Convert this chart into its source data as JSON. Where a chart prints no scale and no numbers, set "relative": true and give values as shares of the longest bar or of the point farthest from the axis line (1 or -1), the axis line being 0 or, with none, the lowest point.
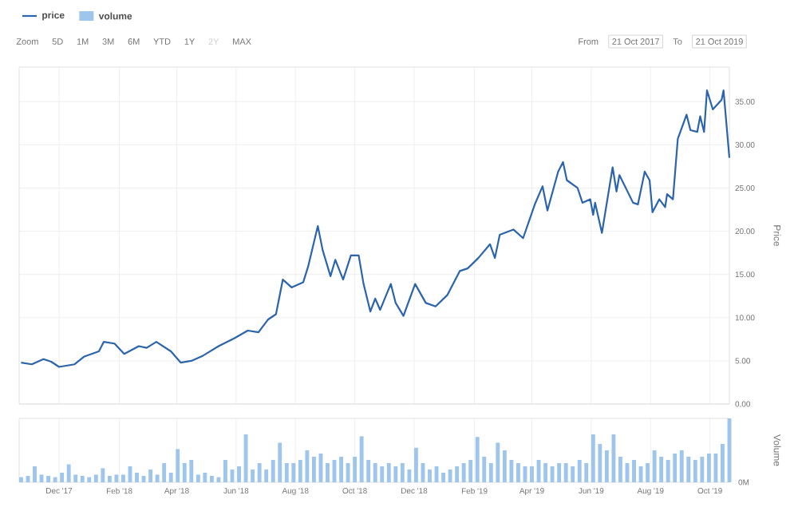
{
  "chart_data": [
    {
      "type": "line",
      "ylabel": "Price",
      "legend": "top left",
      "grid": true,
      "tick_labels": "y",
      "annotations": [
        "Zoom",
        "5D",
        "1M",
        "3M",
        "6M",
        "YTD",
        "1Y",
        "2Y",
        "MAX",
        "From",
        "21 Oct 2017",
        "To",
        "21 Oct 2019"
      ],
      "xlim": [
        "2017-10-21",
        "2019-10-21"
      ],
      "xticks": [
        {
          "value": "2017-12-01",
          "label": null
        },
        {
          "value": "2018-02-01",
          "label": null
        },
        {
          "value": "2018-04-01",
          "label": null
        },
        {
          "value": "2018-06-01",
          "label": null
        },
        {
          "value": "2018-08-01",
          "label": null
        },
        {
          "value": "2018-10-01",
          "label": null
        },
        {
          "value": "2018-12-01",
          "label": null
        },
        {
          "value": "2019-02-01",
          "label": null
        },
        {
          "value": "2019-04-01",
          "label": null
        },
        {
          "value": "2019-06-01",
          "label": null
        },
        {
          "value": "2019-08-01",
          "label": null
        },
        {
          "value": "2019-10-01",
          "label": null
        }
      ],
      "ylim": [
        0,
        39
      ],
      "yticks": [
        {
          "value": 0,
          "label": "0.00"
        },
        {
          "value": 5,
          "label": "5.00"
        },
        {
          "value": 10,
          "label": "10.00"
        },
        {
          "value": 15,
          "label": "15.00"
        },
        {
          "value": 20,
          "label": "20.00"
        },
        {
          "value": 25,
          "label": "25.00"
        },
        {
          "value": 30,
          "label": "30.00"
        },
        {
          "value": 35,
          "label": "35.00"
        }
      ],
      "series": [
        {
          "name": "price",
          "color": "#2b64ad",
          "x": [
            "2017-10-23",
            "2017-11-03",
            "2017-11-15",
            "2017-11-23",
            "2017-12-01",
            "2017-12-17",
            "2017-12-27",
            "2018-01-11",
            "2018-01-16",
            "2018-01-27",
            "2018-02-06",
            "2018-02-21",
            "2018-03-01",
            "2018-03-11",
            "2018-03-26",
            "2018-04-05",
            "2018-04-16",
            "2018-04-28",
            "2018-05-14",
            "2018-05-30",
            "2018-06-13",
            "2018-06-24",
            "2018-07-04",
            "2018-07-12",
            "2018-07-19",
            "2018-07-28",
            "2018-08-09",
            "2018-08-14",
            "2018-08-24",
            "2018-08-29",
            "2018-09-06",
            "2018-09-11",
            "2018-09-19",
            "2018-09-27",
            "2018-10-05",
            "2018-10-10",
            "2018-10-17",
            "2018-10-22",
            "2018-10-27",
            "2018-11-07",
            "2018-11-12",
            "2018-11-20",
            "2018-12-02",
            "2018-12-13",
            "2018-12-23",
            "2019-01-04",
            "2019-01-17",
            "2019-01-25",
            "2019-02-05",
            "2019-02-17",
            "2019-02-22",
            "2019-02-27",
            "2019-03-13",
            "2019-03-23",
            "2019-04-04",
            "2019-04-12",
            "2019-04-17",
            "2019-04-28",
            "2019-05-03",
            "2019-05-07",
            "2019-05-18",
            "2019-05-23",
            "2019-05-31",
            "2019-06-03",
            "2019-06-05",
            "2019-06-12",
            "2019-06-23",
            "2019-06-27",
            "2019-06-30",
            "2019-07-14",
            "2019-07-19",
            "2019-07-26",
            "2019-07-31",
            "2019-08-03",
            "2019-08-10",
            "2019-08-16",
            "2019-08-18",
            "2019-08-24",
            "2019-08-29",
            "2019-09-07",
            "2019-09-11",
            "2019-09-18",
            "2019-09-21",
            "2019-09-25",
            "2019-09-28",
            "2019-10-04",
            "2019-10-13",
            "2019-10-15",
            "2019-10-21"
          ],
          "values": [
            4.8,
            4.6,
            5.2,
            4.9,
            4.3,
            4.6,
            5.5,
            6.1,
            7.2,
            7.0,
            5.8,
            6.7,
            6.5,
            7.2,
            6.1,
            4.8,
            5.0,
            5.6,
            6.7,
            7.6,
            8.5,
            8.3,
            9.8,
            10.4,
            14.4,
            13.5,
            14.1,
            15.9,
            20.6,
            17.8,
            14.8,
            16.7,
            14.4,
            17.2,
            17.2,
            13.9,
            10.7,
            12.2,
            10.9,
            13.9,
            11.7,
            10.2,
            13.9,
            11.7,
            11.3,
            12.6,
            15.4,
            15.7,
            16.9,
            18.5,
            16.9,
            19.6,
            20.2,
            19.2,
            23.1,
            25.2,
            22.4,
            26.9,
            28.0,
            25.9,
            25.0,
            23.3,
            23.7,
            21.9,
            23.3,
            19.8,
            27.4,
            24.6,
            26.5,
            23.3,
            23.1,
            26.9,
            25.9,
            22.2,
            23.7,
            22.8,
            24.3,
            23.7,
            30.7,
            33.5,
            31.7,
            31.5,
            33.3,
            31.5,
            36.3,
            34.1,
            35.2,
            36.3,
            28.5
          ]
        }
      ]
    },
    {
      "type": "bar",
      "relative": true,
      "ylabel": "Volume",
      "legend": "top left",
      "grid": "x",
      "annotations": [
        "0M"
      ],
      "xlim": [
        "2017-10-21",
        "2019-10-21"
      ],
      "xticks": [
        {
          "value": "2017-12-01",
          "label": "Dec '17"
        },
        {
          "value": "2018-02-01",
          "label": "Feb '18"
        },
        {
          "value": "2018-04-01",
          "label": "Apr '18"
        },
        {
          "value": "2018-06-01",
          "label": "Jun '18"
        },
        {
          "value": "2018-08-01",
          "label": "Aug '18"
        },
        {
          "value": "2018-10-01",
          "label": "Oct '18"
        },
        {
          "value": "2018-12-01",
          "label": "Dec '18"
        },
        {
          "value": "2019-02-01",
          "label": "Feb '19"
        },
        {
          "value": "2019-04-01",
          "label": "Apr '19"
        },
        {
          "value": "2019-06-01",
          "label": "Jun '19"
        },
        {
          "value": "2019-08-01",
          "label": "Aug '19"
        },
        {
          "value": "2019-10-01",
          "label": "Oct '19"
        }
      ],
      "series": [
        {
          "name": "volume",
          "color": "#9ec5ec",
          "x": [
            "2017-10-23",
            "2017-10-30",
            "2017-11-06",
            "2017-11-13",
            "2017-11-20",
            "2017-11-27",
            "2017-12-04",
            "2017-12-11",
            "2017-12-18",
            "2017-12-25",
            "2018-01-01",
            "2018-01-08",
            "2018-01-15",
            "2018-01-22",
            "2018-01-29",
            "2018-02-05",
            "2018-02-12",
            "2018-02-19",
            "2018-02-26",
            "2018-03-05",
            "2018-03-12",
            "2018-03-19",
            "2018-03-26",
            "2018-04-02",
            "2018-04-09",
            "2018-04-16",
            "2018-04-23",
            "2018-04-30",
            "2018-05-07",
            "2018-05-14",
            "2018-05-21",
            "2018-05-28",
            "2018-06-04",
            "2018-06-11",
            "2018-06-18",
            "2018-06-25",
            "2018-07-02",
            "2018-07-09",
            "2018-07-16",
            "2018-07-23",
            "2018-07-30",
            "2018-08-06",
            "2018-08-13",
            "2018-08-20",
            "2018-08-27",
            "2018-09-03",
            "2018-09-10",
            "2018-09-17",
            "2018-09-24",
            "2018-10-01",
            "2018-10-08",
            "2018-10-15",
            "2018-10-22",
            "2018-10-29",
            "2018-11-05",
            "2018-11-12",
            "2018-11-19",
            "2018-11-26",
            "2018-12-03",
            "2018-12-10",
            "2018-12-17",
            "2018-12-24",
            "2018-12-31",
            "2019-01-07",
            "2019-01-14",
            "2019-01-21",
            "2019-01-28",
            "2019-02-04",
            "2019-02-11",
            "2019-02-18",
            "2019-02-25",
            "2019-03-04",
            "2019-03-11",
            "2019-03-18",
            "2019-03-25",
            "2019-04-01",
            "2019-04-08",
            "2019-04-15",
            "2019-04-22",
            "2019-04-29",
            "2019-05-06",
            "2019-05-13",
            "2019-05-20",
            "2019-05-27",
            "2019-06-03",
            "2019-06-10",
            "2019-06-17",
            "2019-06-24",
            "2019-07-01",
            "2019-07-08",
            "2019-07-15",
            "2019-07-22",
            "2019-07-29",
            "2019-08-05",
            "2019-08-12",
            "2019-08-19",
            "2019-08-26",
            "2019-09-02",
            "2019-09-09",
            "2019-09-16",
            "2019-09-23",
            "2019-09-30",
            "2019-10-07",
            "2019-10-14",
            "2019-10-21"
          ],
          "values": [
            0.08,
            0.1,
            0.25,
            0.12,
            0.1,
            0.08,
            0.15,
            0.28,
            0.12,
            0.1,
            0.08,
            0.12,
            0.22,
            0.1,
            0.12,
            0.12,
            0.25,
            0.15,
            0.1,
            0.2,
            0.12,
            0.3,
            0.15,
            0.52,
            0.3,
            0.35,
            0.12,
            0.15,
            0.1,
            0.08,
            0.35,
            0.2,
            0.25,
            0.75,
            0.2,
            0.3,
            0.2,
            0.35,
            0.62,
            0.3,
            0.3,
            0.35,
            0.5,
            0.4,
            0.45,
            0.3,
            0.35,
            0.4,
            0.3,
            0.4,
            0.72,
            0.35,
            0.3,
            0.25,
            0.3,
            0.25,
            0.3,
            0.2,
            0.54,
            0.3,
            0.2,
            0.25,
            0.15,
            0.2,
            0.25,
            0.3,
            0.35,
            0.71,
            0.4,
            0.3,
            0.62,
            0.5,
            0.35,
            0.3,
            0.25,
            0.25,
            0.35,
            0.3,
            0.25,
            0.3,
            0.3,
            0.25,
            0.35,
            0.3,
            0.75,
            0.6,
            0.5,
            0.75,
            0.4,
            0.3,
            0.35,
            0.25,
            0.3,
            0.5,
            0.4,
            0.35,
            0.45,
            0.5,
            0.4,
            0.35,
            0.4,
            0.45,
            0.45,
            0.6,
            1.0
          ]
        }
      ]
    }
  ]
}
